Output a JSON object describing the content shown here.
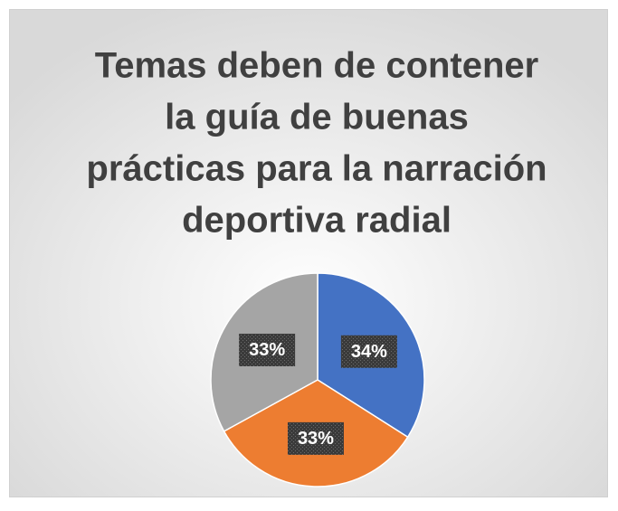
{
  "chart_data": {
    "type": "pie",
    "title": [
      "Temas deben de contener",
      "la guía de buenas",
      "prácticas para la narración",
      "deportiva radial"
    ],
    "values": [
      34,
      33,
      33
    ],
    "value_labels": [
      "34%",
      "33%",
      "33%"
    ],
    "colors": [
      "#4472c4",
      "#ed7d31",
      "#a5a5a5"
    ]
  }
}
